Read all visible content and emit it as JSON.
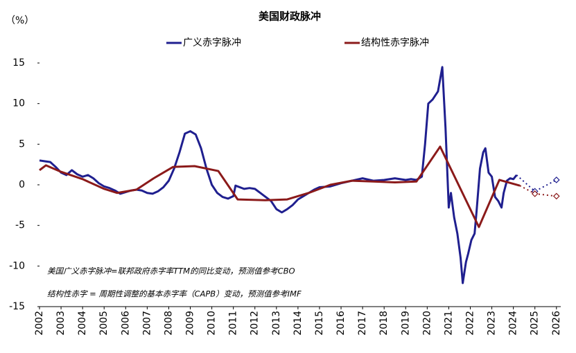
{
  "chart_data": {
    "type": "line",
    "title": "美国财政脉冲",
    "y_label": "（%）",
    "annotations": [
      "美国广义赤字脉冲=联邦政府赤字率TTM的同比变动，预测值参考CBO",
      "结构性赤字 = 周期性调整的基本赤字率（CAPB）变动，预测值参考IMF"
    ],
    "xlim": [
      2002,
      2026.2
    ],
    "xticks": [
      2002,
      2003,
      2004,
      2005,
      2006,
      2007,
      2008,
      2009,
      2010,
      2011,
      2012,
      2013,
      2014,
      2015,
      2016,
      2017,
      2018,
      2019,
      2020,
      2021,
      2022,
      2023,
      2024,
      2025,
      2026
    ],
    "ylim": [
      -15,
      15
    ],
    "yticks": [
      -15,
      -10,
      -5,
      0,
      5,
      10,
      15
    ],
    "series": [
      {
        "name": "广义赤字脉冲",
        "color": "#1f1f8f",
        "x": [
          2002,
          2002.25,
          2002.5,
          2002.75,
          2003,
          2003.25,
          2003.5,
          2003.75,
          2004,
          2004.25,
          2004.5,
          2004.75,
          2005,
          2005.25,
          2005.5,
          2005.75,
          2006,
          2006.25,
          2006.5,
          2006.75,
          2007,
          2007.25,
          2007.5,
          2007.75,
          2008,
          2008.25,
          2008.5,
          2008.75,
          2009,
          2009.25,
          2009.5,
          2009.75,
          2010,
          2010.25,
          2010.5,
          2010.75,
          2011,
          2011.1,
          2011.5,
          2011.75,
          2012,
          2012.25,
          2012.5,
          2012.75,
          2013,
          2013.25,
          2013.5,
          2013.75,
          2014,
          2014.25,
          2014.5,
          2014.75,
          2015,
          2015.5,
          2016,
          2016.5,
          2017,
          2017.5,
          2018,
          2018.5,
          2019,
          2019.25,
          2019.5,
          2019.75,
          2019.9,
          2020.05,
          2020.25,
          2020.5,
          2020.7,
          2020.85,
          2021,
          2021.1,
          2021.25,
          2021.4,
          2021.55,
          2021.65,
          2021.8,
          2021.9,
          2022.05,
          2022.2,
          2022.3,
          2022.45,
          2022.6,
          2022.7,
          2022.85,
          2023,
          2023.15,
          2023.3,
          2023.45,
          2023.55,
          2023.7,
          2023.85,
          2024,
          2024.15
        ],
        "values": [
          3,
          2.9,
          2.8,
          2.2,
          1.5,
          1.2,
          1.8,
          1.3,
          1,
          1.2,
          0.8,
          0.2,
          -0.2,
          -0.4,
          -0.7,
          -1.1,
          -0.9,
          -0.7,
          -0.6,
          -0.7,
          -1,
          -1.1,
          -0.8,
          -0.3,
          0.5,
          2,
          4,
          6.3,
          6.6,
          6.2,
          4.5,
          2,
          0,
          -1,
          -1.5,
          -1.7,
          -1.4,
          -0.1,
          -0.5,
          -0.4,
          -0.5,
          -1,
          -1.5,
          -2,
          -3,
          -3.4,
          -3,
          -2.5,
          -1.8,
          -1.4,
          -1,
          -0.6,
          -0.3,
          -0.2,
          0.2,
          0.5,
          0.8,
          0.5,
          0.6,
          0.8,
          0.6,
          0.7,
          0.6,
          1,
          5,
          10,
          10.5,
          11.5,
          14.5,
          7,
          -2.8,
          -1,
          -4,
          -6,
          -9,
          -12.1,
          -9.5,
          -8.5,
          -6.8,
          -6,
          -3,
          2,
          4,
          4.5,
          1.5,
          1,
          -1.5,
          -2,
          -2.8,
          -1,
          0.5,
          0.8,
          0.7,
          1.2
        ],
        "forecast": {
          "x": [
            2025,
            2026
          ],
          "values": [
            -0.8,
            0.6
          ]
        }
      },
      {
        "name": "结构性赤字脉冲",
        "color": "#8b1a1a",
        "x": [
          2002,
          2002.3,
          2003,
          2004,
          2005,
          2005.6,
          2006.5,
          2007.3,
          2008.2,
          2009.2,
          2010.3,
          2011.2,
          2012.5,
          2013.5,
          2014.5,
          2015.5,
          2016.5,
          2017.5,
          2018.5,
          2019.5,
          2020.6,
          2022.4,
          2023.35,
          2024.3
        ],
        "values": [
          1.8,
          2.4,
          1.6,
          0.7,
          -0.5,
          -1,
          -0.6,
          0.8,
          2.2,
          2.3,
          1.7,
          -1.8,
          -1.9,
          -1.8,
          -1,
          0,
          0.5,
          0.4,
          0.3,
          0.4,
          4.7,
          -5.2,
          0.6,
          -0.1
        ],
        "forecast": {
          "x": [
            2025,
            2026
          ],
          "values": [
            -1.1,
            -1.4
          ]
        }
      }
    ]
  }
}
